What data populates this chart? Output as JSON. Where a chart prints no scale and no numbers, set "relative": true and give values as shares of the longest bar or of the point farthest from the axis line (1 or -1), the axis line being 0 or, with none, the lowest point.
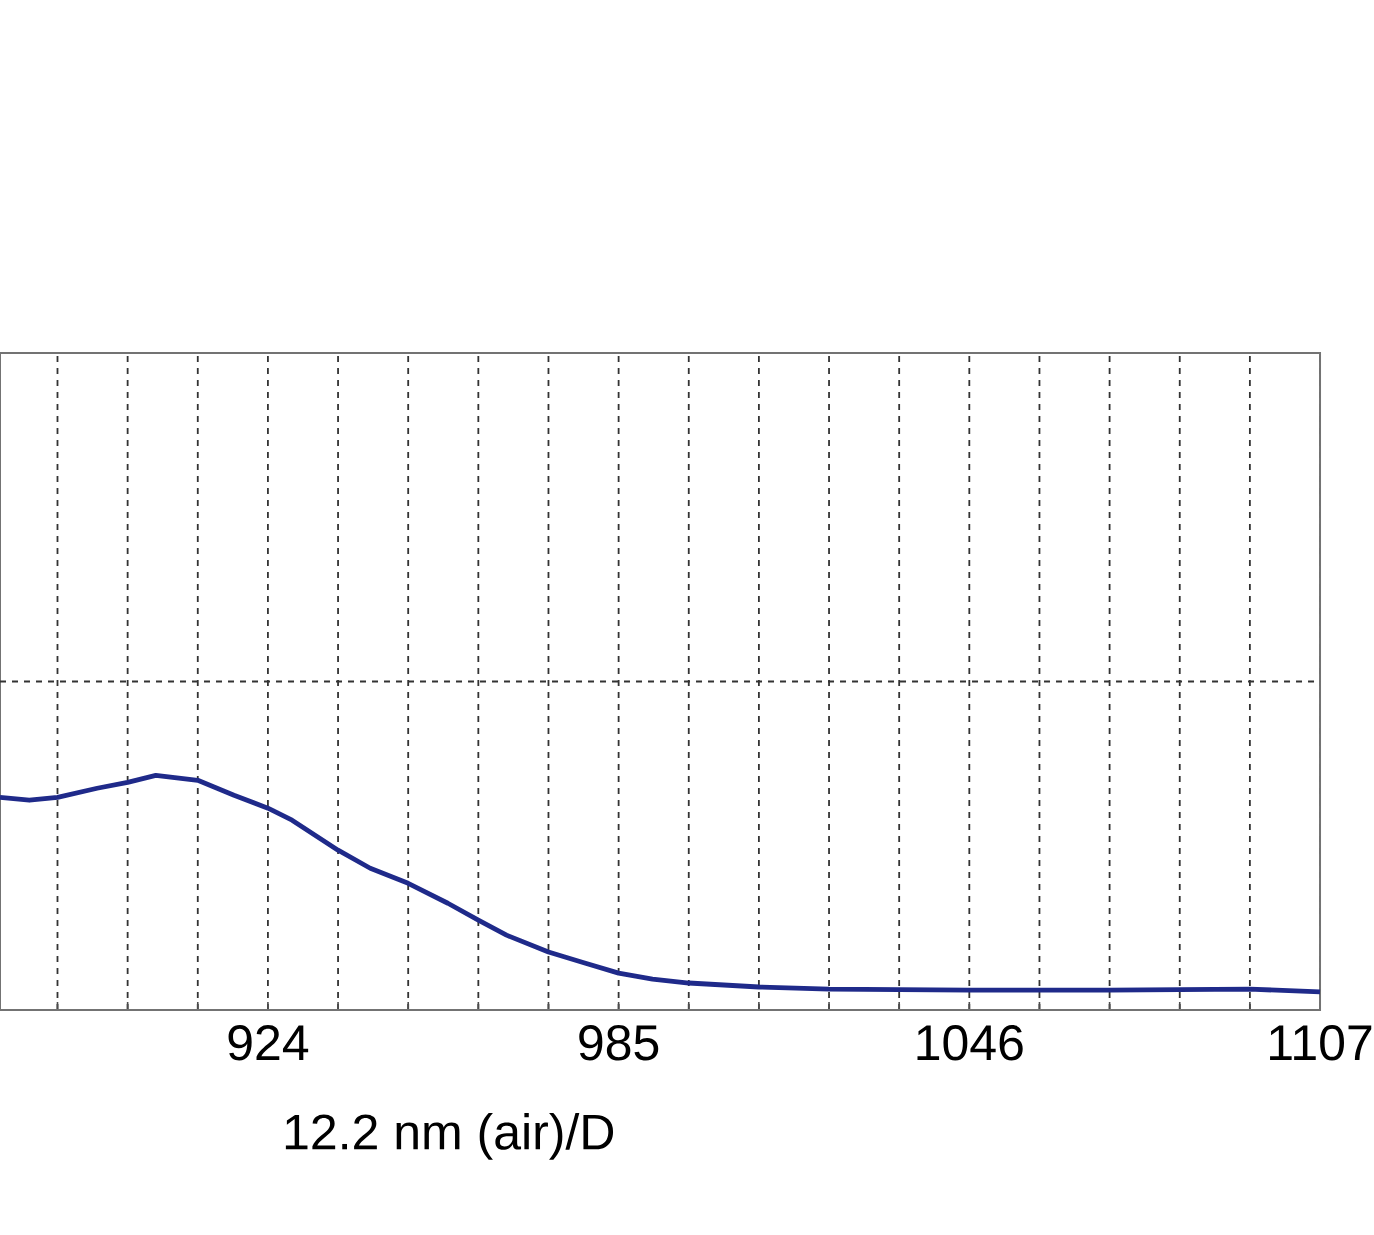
{
  "chart_data": {
    "type": "line",
    "relative": true,
    "xlabel": "12.2 nm (air)/D",
    "xlim": [
      877.4,
      1107
    ],
    "xticks": [
      {
        "value": 887.4,
        "label": null
      },
      {
        "value": 899.6,
        "label": null
      },
      {
        "value": 911.8,
        "label": null
      },
      924,
      {
        "value": 936.2,
        "label": null
      },
      {
        "value": 948.4,
        "label": null
      },
      {
        "value": 960.6,
        "label": null
      },
      {
        "value": 972.8,
        "label": null
      },
      985,
      {
        "value": 997.2,
        "label": null
      },
      {
        "value": 1009.4,
        "label": null
      },
      {
        "value": 1021.6,
        "label": null
      },
      {
        "value": 1033.8,
        "label": null
      },
      1046,
      {
        "value": 1058.2,
        "label": null
      },
      {
        "value": 1070.4,
        "label": null
      },
      {
        "value": 1082.6,
        "label": null
      },
      {
        "value": 1094.8,
        "label": null
      },
      1107
    ],
    "grid": "x",
    "marker": "none",
    "line_style": "solid",
    "ref_lines": [
      {
        "axis": "y",
        "value": 1.4,
        "line_style": "dashed"
      }
    ],
    "series": [
      {
        "color": "#1f2a8a",
        "x": [
          877.4,
          882.5,
          887.4,
          894.3,
          899.6,
          904.5,
          911.8,
          918.1,
          924,
          928.2,
          936.2,
          941.8,
          948.4,
          955.3,
          960.6,
          965.5,
          972.8,
          979.1,
          985,
          990.9,
          997.2,
          1009.4,
          1021.6,
          1046,
          1070.4,
          1094.8,
          1107
        ],
        "values": [
          0.906,
          0.894,
          0.906,
          0.945,
          0.97,
          1.0,
          0.979,
          0.915,
          0.86,
          0.809,
          0.681,
          0.604,
          0.54,
          0.455,
          0.383,
          0.319,
          0.247,
          0.2,
          0.157,
          0.132,
          0.115,
          0.098,
          0.089,
          0.085,
          0.085,
          0.089,
          0.077
        ]
      }
    ]
  }
}
